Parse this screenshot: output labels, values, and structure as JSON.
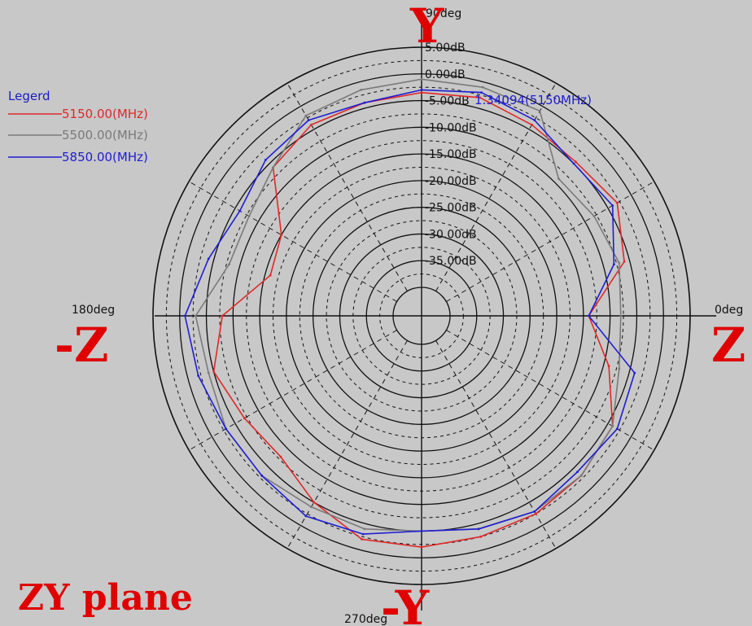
{
  "chart_data": {
    "type": "line",
    "subtype": "polar",
    "title": "ZY plane",
    "legend": {
      "title": "Legerd",
      "placement": "top-left"
    },
    "radial_axis": {
      "unit": "dB",
      "range": [
        -40,
        5
      ],
      "major_ticks": [
        5,
        0,
        -5,
        -10,
        -15,
        -20,
        -25,
        -30,
        -35
      ],
      "tick_labels": [
        "5.00dB",
        "0.00dB",
        "-5.00dB",
        "-10.00dB",
        "-15.00dB",
        "-20.00dB",
        "-25.00dB",
        "-30.00dB",
        "-35.00dB"
      ]
    },
    "angular_axis": {
      "unit": "deg",
      "labels": [
        {
          "angle": 90,
          "label": "90deg"
        },
        {
          "angle": 180,
          "label": "180deg"
        },
        {
          "angle": 0,
          "label": "0deg"
        },
        {
          "angle": 270,
          "label": "270deg"
        }
      ],
      "direction_labels": [
        {
          "angle": 90,
          "label": "Y"
        },
        {
          "angle": 180,
          "label": "-Z"
        },
        {
          "angle": 0,
          "label": "Z"
        },
        {
          "angle": 270,
          "label": "-Y"
        }
      ]
    },
    "marker_annotation": "1.34094(5150MHz)",
    "grid": true,
    "angles": [
      0,
      15,
      30,
      45,
      60,
      75,
      90,
      105,
      120,
      135,
      150,
      165,
      180,
      195,
      210,
      225,
      240,
      255,
      270,
      285,
      300,
      315,
      330,
      345
    ],
    "series": [
      {
        "name": "5150.00(MHz)",
        "color": "#e02828",
        "values": [
          -14,
          -6,
          -3,
          -4.5,
          -4,
          -3,
          -3.5,
          -4,
          -4,
          -6,
          -15,
          -16,
          -8,
          -5,
          -7,
          -8,
          -5,
          -2,
          -2,
          -2.5,
          -2.5,
          -3,
          -4,
          -9
        ]
      },
      {
        "name": "5500.00(MHz)",
        "color": "#7a7a7a",
        "values": [
          -8,
          -7,
          -8,
          -9,
          -1,
          -1,
          -1,
          -1.5,
          -2,
          -6,
          -8,
          -8,
          -3,
          -4,
          -3,
          -3,
          -4,
          -4,
          -5,
          -4,
          -3,
          -3,
          -4,
          -7
        ]
      },
      {
        "name": "5850.00(MHz)",
        "color": "#1e1ed2",
        "values": [
          -14,
          -8,
          -4,
          -5,
          -3,
          -2,
          -3,
          -4,
          -3,
          -4,
          -6,
          -4,
          -1,
          -2,
          -3,
          -3,
          -2,
          -3,
          -5,
          -4,
          -3,
          -4,
          -3,
          -4
        ]
      }
    ]
  },
  "colors": {
    "background": "#c8c8c8",
    "direction_label": "#e00000",
    "legend_title": "#1a1acc",
    "marker_annotation": "#1e1ed2"
  }
}
